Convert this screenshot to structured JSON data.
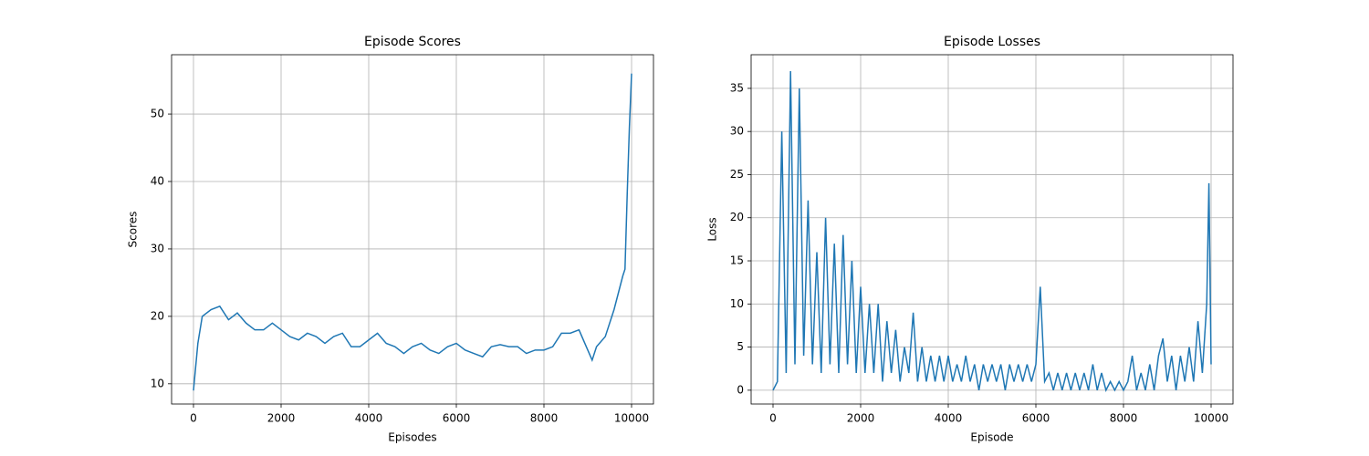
{
  "chart_data": [
    {
      "type": "line",
      "title": "Episode Scores",
      "xlabel": "Episodes",
      "ylabel": "Scores",
      "grid": true,
      "xlim": [
        -500,
        10500
      ],
      "xticks": [
        0,
        2000,
        4000,
        6000,
        8000,
        10000
      ],
      "ylim": [
        7.0,
        58.8
      ],
      "yticks": [
        10,
        20,
        30,
        40,
        50
      ],
      "x": [
        0,
        100,
        200,
        400,
        600,
        800,
        1000,
        1200,
        1400,
        1600,
        1800,
        2000,
        2200,
        2400,
        2600,
        2800,
        3000,
        3200,
        3400,
        3600,
        3800,
        4000,
        4200,
        4400,
        4600,
        4800,
        5000,
        5200,
        5400,
        5600,
        5800,
        6000,
        6200,
        6400,
        6600,
        6800,
        7000,
        7200,
        7400,
        7600,
        7800,
        8000,
        8200,
        8400,
        8600,
        8800,
        9000,
        9100,
        9200,
        9400,
        9600,
        9800,
        9850,
        9900,
        9950,
        10000
      ],
      "series": [
        {
          "name": "Scores",
          "color": "#1f77b4",
          "values": [
            9,
            16,
            20,
            21,
            21.5,
            19.5,
            20.5,
            19,
            18,
            18,
            19,
            18,
            17,
            16.5,
            17.5,
            17,
            16,
            17,
            17.5,
            15.5,
            15.5,
            16.5,
            17.5,
            16,
            15.5,
            14.5,
            15.5,
            16,
            15,
            14.5,
            15.5,
            16,
            15,
            14.5,
            14,
            15.5,
            15.8,
            15.5,
            15.5,
            14.5,
            15,
            15,
            15.5,
            17.5,
            17.5,
            18,
            15,
            13.5,
            15.5,
            17,
            21,
            26,
            27,
            38,
            48,
            56
          ]
        }
      ]
    },
    {
      "type": "line",
      "title": "Episode Losses",
      "xlabel": "Episode",
      "ylabel": "Loss",
      "grid": true,
      "xlim": [
        -500,
        10500
      ],
      "xticks": [
        0,
        2000,
        4000,
        6000,
        8000,
        10000
      ],
      "ylim": [
        -1.6,
        38.9
      ],
      "yticks": [
        0,
        5,
        10,
        15,
        20,
        25,
        30,
        35
      ],
      "x": [
        0,
        100,
        200,
        300,
        400,
        500,
        600,
        700,
        800,
        900,
        1000,
        1100,
        1200,
        1300,
        1400,
        1500,
        1600,
        1700,
        1800,
        1900,
        2000,
        2100,
        2200,
        2300,
        2400,
        2500,
        2600,
        2700,
        2800,
        2900,
        3000,
        3100,
        3200,
        3300,
        3400,
        3500,
        3600,
        3700,
        3800,
        3900,
        4000,
        4100,
        4200,
        4300,
        4400,
        4500,
        4600,
        4700,
        4800,
        4900,
        5000,
        5100,
        5200,
        5300,
        5400,
        5500,
        5600,
        5700,
        5800,
        5900,
        6000,
        6100,
        6200,
        6300,
        6400,
        6500,
        6600,
        6700,
        6800,
        6900,
        7000,
        7100,
        7200,
        7300,
        7400,
        7500,
        7600,
        7700,
        7800,
        7900,
        8000,
        8100,
        8200,
        8300,
        8400,
        8500,
        8600,
        8700,
        8800,
        8900,
        9000,
        9100,
        9200,
        9300,
        9400,
        9500,
        9600,
        9700,
        9800,
        9900,
        9950,
        10000
      ],
      "series": [
        {
          "name": "Loss",
          "color": "#1f77b4",
          "values": [
            0,
            1,
            30,
            2,
            37,
            3,
            35,
            4,
            22,
            3,
            16,
            2,
            20,
            3,
            17,
            2,
            18,
            3,
            15,
            2,
            12,
            2,
            10,
            2,
            10,
            1,
            8,
            2,
            7,
            1,
            5,
            2,
            9,
            1,
            5,
            1,
            4,
            1,
            4,
            1,
            4,
            1,
            3,
            1,
            4,
            1,
            3,
            0,
            3,
            1,
            3,
            1,
            3,
            0,
            3,
            1,
            3,
            1,
            3,
            1,
            3,
            12,
            1,
            2,
            0,
            2,
            0,
            2,
            0,
            2,
            0,
            2,
            0,
            3,
            0,
            2,
            0,
            1,
            0,
            1,
            0,
            1,
            4,
            0,
            2,
            0,
            3,
            0,
            4,
            6,
            1,
            4,
            0,
            4,
            1,
            5,
            1,
            8,
            2,
            10,
            24,
            3
          ]
        }
      ]
    }
  ]
}
